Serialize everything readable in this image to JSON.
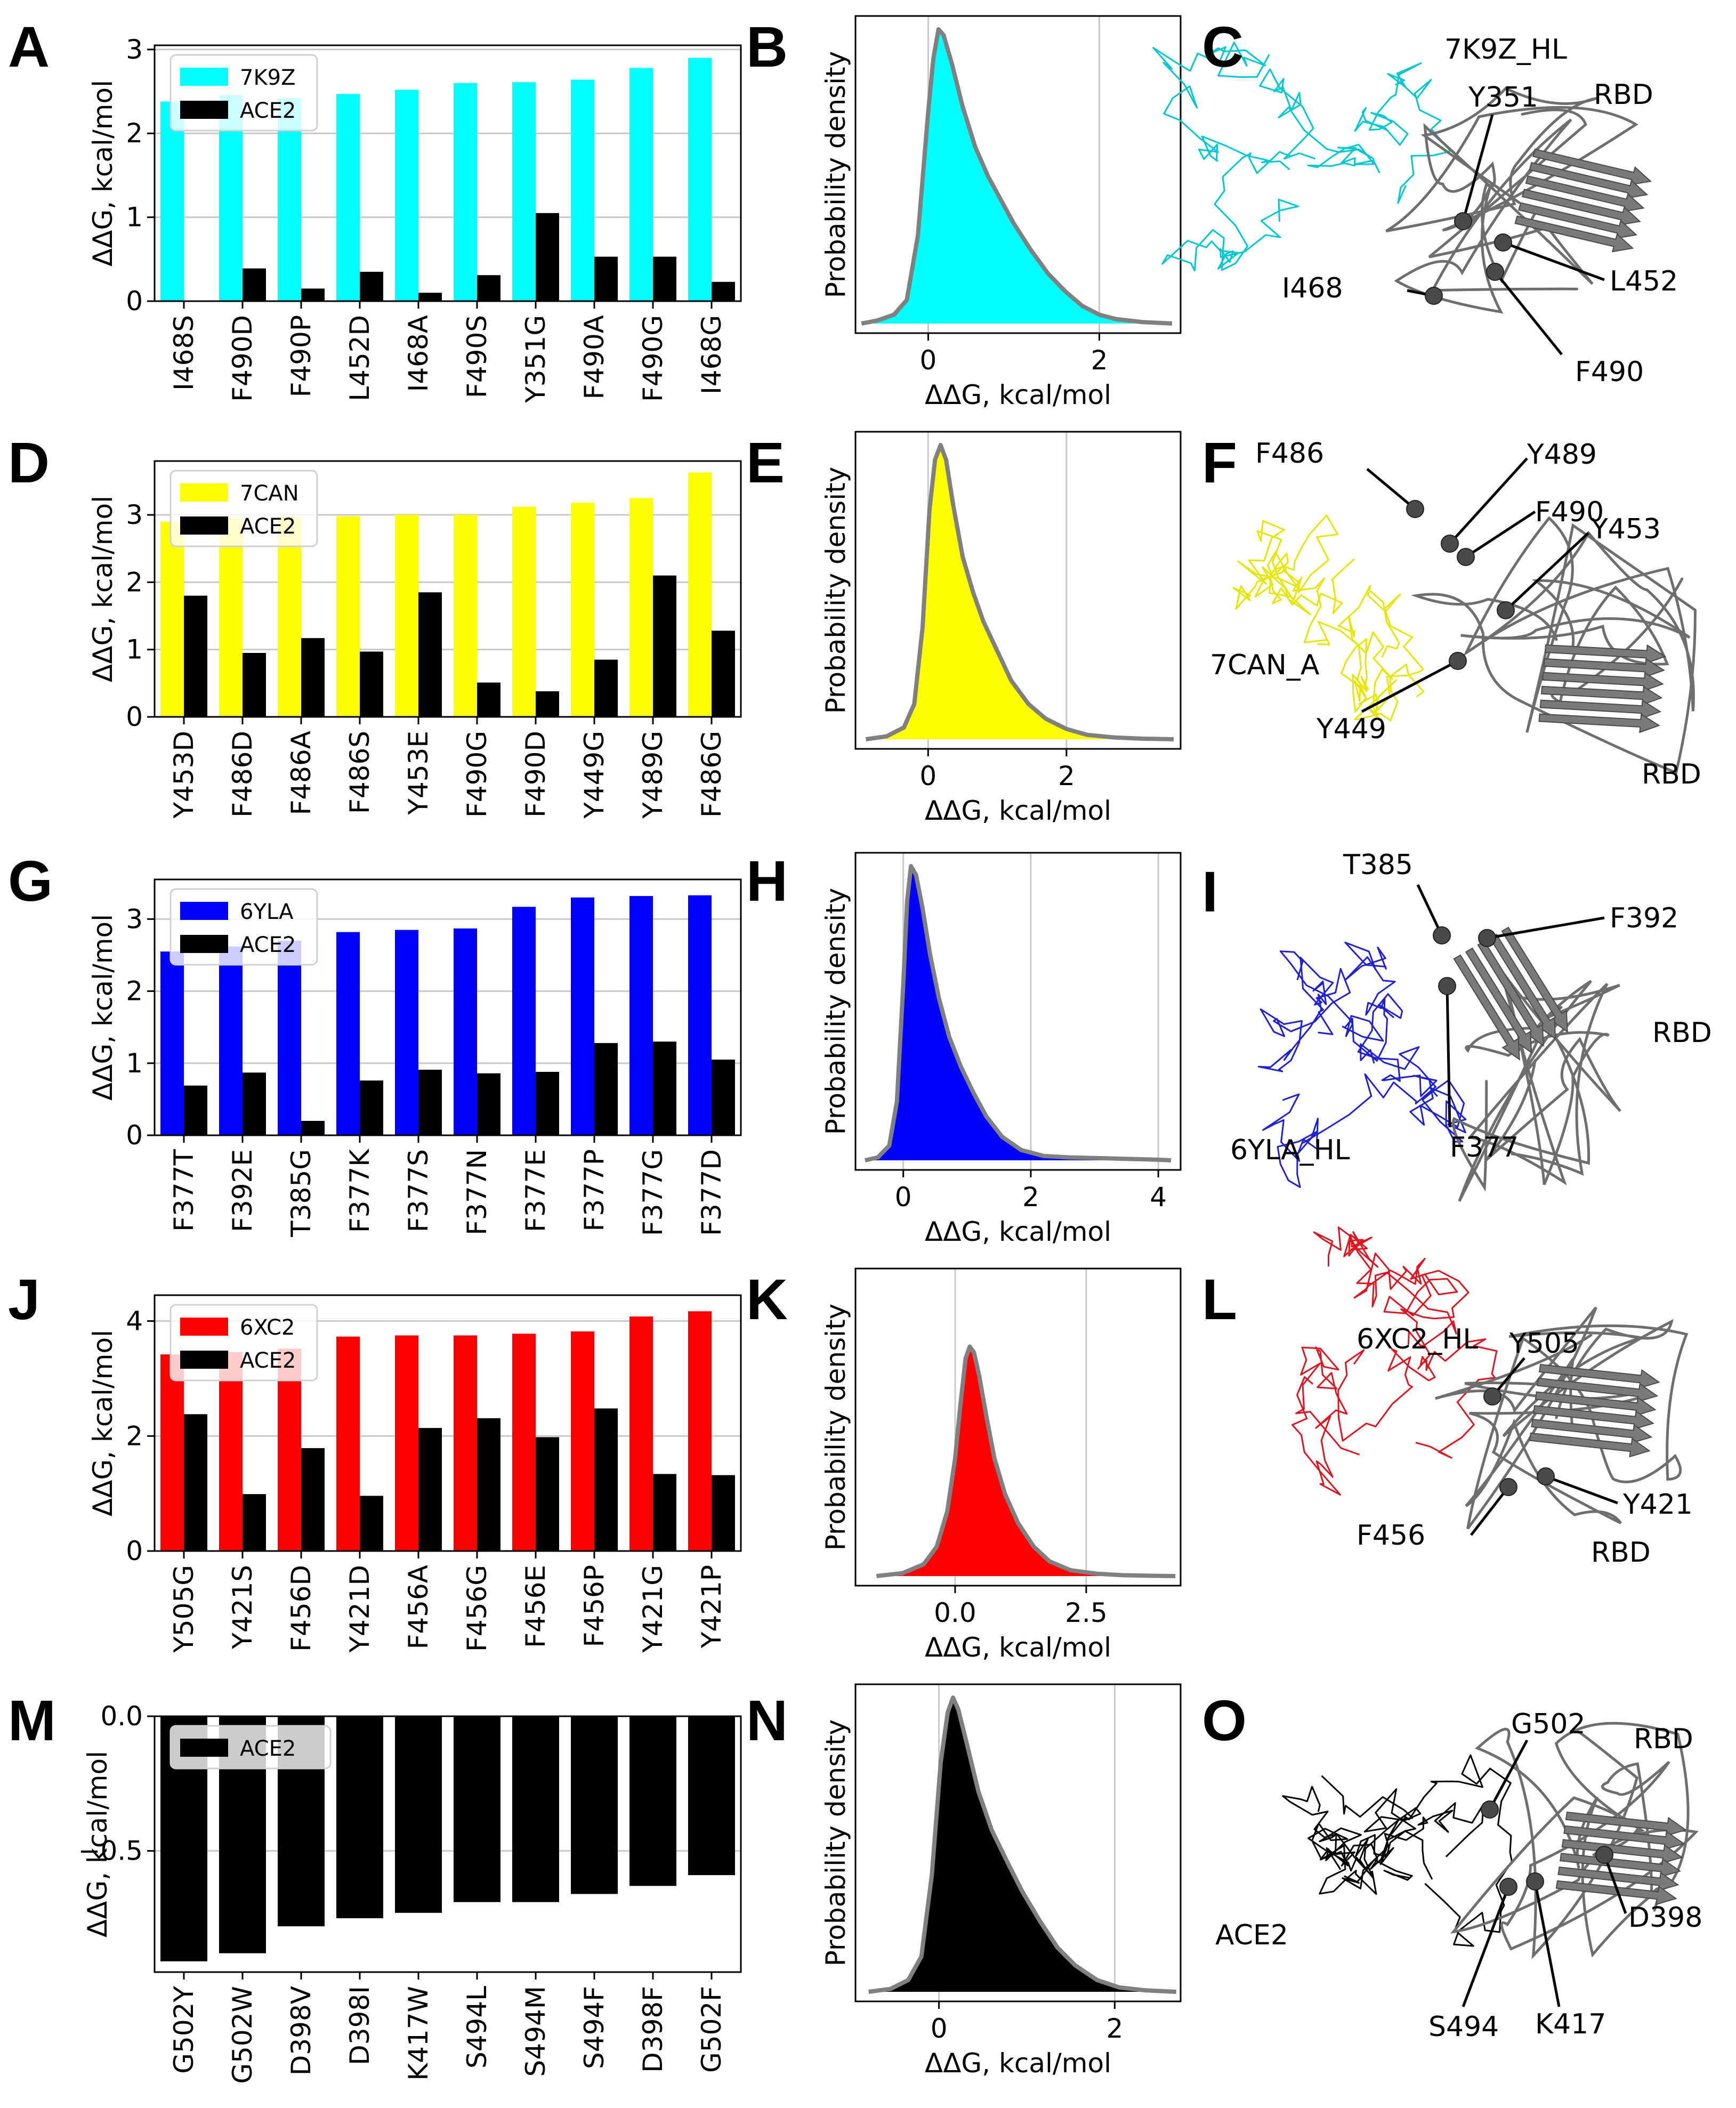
{
  "figure": {
    "kde_ylabel": "Probability density",
    "kde_xlabel": "ΔΔG, kcal/mol"
  },
  "chart_data": [
    {
      "panel": "A",
      "type": "bar",
      "categories": [
        "I468S",
        "F490D",
        "F490P",
        "L452D",
        "I468A",
        "F490S",
        "Y351G",
        "F490A",
        "F490G",
        "I468G"
      ],
      "series": [
        {
          "name": "7K9Z",
          "color": "#00ffff",
          "values": [
            2.38,
            2.46,
            2.42,
            2.47,
            2.52,
            2.6,
            2.61,
            2.64,
            2.78,
            2.9
          ]
        },
        {
          "name": "ACE2",
          "color": "#000000",
          "values": [
            0.0,
            0.39,
            0.15,
            0.35,
            0.1,
            0.31,
            1.05,
            0.53,
            0.53,
            0.23
          ]
        }
      ],
      "ylabel": "ΔΔG, kcal/mol",
      "ylim": [
        0,
        3.05
      ],
      "yticks": [
        0,
        1,
        2,
        3
      ],
      "grid": "y",
      "legend": "top-left"
    },
    {
      "panel": "B",
      "type": "area",
      "title": "",
      "xlabel": "ΔΔG, kcal/mol",
      "ylabel": "Probability density",
      "xlim": [
        -0.85,
        2.95
      ],
      "xticks": [
        0,
        2
      ],
      "fill": "#00ffff",
      "x": [
        -0.78,
        -0.6,
        -0.4,
        -0.25,
        -0.12,
        0.0,
        0.06,
        0.12,
        0.18,
        0.28,
        0.4,
        0.55,
        0.7,
        0.85,
        1.0,
        1.2,
        1.4,
        1.6,
        1.8,
        2.0,
        2.2,
        2.5,
        2.85
      ],
      "y": [
        0.0,
        0.01,
        0.03,
        0.08,
        0.3,
        0.72,
        0.9,
        1.0,
        0.98,
        0.88,
        0.74,
        0.6,
        0.5,
        0.42,
        0.34,
        0.25,
        0.17,
        0.11,
        0.06,
        0.03,
        0.015,
        0.005,
        0.0
      ]
    },
    {
      "panel": "D",
      "type": "bar",
      "categories": [
        "Y453D",
        "F486D",
        "F486A",
        "F486S",
        "Y453E",
        "F490G",
        "F490D",
        "Y449G",
        "Y489G",
        "F486G"
      ],
      "series": [
        {
          "name": "7CAN",
          "color": "#ffff00",
          "values": [
            2.9,
            2.95,
            2.97,
            2.98,
            3.0,
            3.0,
            3.12,
            3.18,
            3.25,
            3.63
          ]
        },
        {
          "name": "ACE2",
          "color": "#000000",
          "values": [
            1.8,
            0.95,
            1.17,
            0.97,
            1.85,
            0.51,
            0.38,
            0.85,
            2.1,
            1.28
          ]
        }
      ],
      "ylabel": "ΔΔG, kcal/mol",
      "ylim": [
        0,
        3.8
      ],
      "yticks": [
        0,
        1,
        2,
        3
      ],
      "grid": "y",
      "legend": "top-left"
    },
    {
      "panel": "E",
      "type": "area",
      "xlabel": "ΔΔG, kcal/mol",
      "ylabel": "Probability density",
      "xlim": [
        -1.05,
        3.65
      ],
      "xticks": [
        0,
        2
      ],
      "fill": "#ffff00",
      "x": [
        -0.9,
        -0.6,
        -0.35,
        -0.2,
        -0.08,
        0.02,
        0.1,
        0.18,
        0.26,
        0.36,
        0.5,
        0.65,
        0.8,
        1.0,
        1.2,
        1.45,
        1.7,
        2.0,
        2.3,
        2.7,
        3.1,
        3.55
      ],
      "y": [
        0.0,
        0.01,
        0.04,
        0.12,
        0.38,
        0.78,
        0.95,
        1.0,
        0.95,
        0.8,
        0.62,
        0.5,
        0.4,
        0.3,
        0.2,
        0.12,
        0.07,
        0.035,
        0.015,
        0.006,
        0.002,
        0.0
      ]
    },
    {
      "panel": "G",
      "type": "bar",
      "categories": [
        "F377T",
        "F392E",
        "T385G",
        "F377K",
        "F377S",
        "F377N",
        "F377E",
        "F377P",
        "F377G",
        "F377D"
      ],
      "series": [
        {
          "name": "6YLA",
          "color": "#0000ff",
          "values": [
            2.55,
            2.62,
            2.7,
            2.82,
            2.85,
            2.87,
            3.17,
            3.3,
            3.32,
            3.33
          ]
        },
        {
          "name": "ACE2",
          "color": "#000000",
          "values": [
            0.69,
            0.87,
            0.2,
            0.76,
            0.91,
            0.86,
            0.88,
            1.28,
            1.3,
            1.05
          ]
        }
      ],
      "ylabel": "ΔΔG, kcal/mol",
      "ylim": [
        0,
        3.55
      ],
      "yticks": [
        0,
        1,
        2,
        3
      ],
      "grid": "y",
      "legend": "top-left"
    },
    {
      "panel": "H",
      "type": "area",
      "xlabel": "ΔΔG, kcal/mol",
      "ylabel": "Probability density",
      "xlim": [
        -0.75,
        4.35
      ],
      "xticks": [
        0,
        2,
        4
      ],
      "fill": "#0000ff",
      "x": [
        -0.6,
        -0.4,
        -0.22,
        -0.1,
        0.0,
        0.06,
        0.12,
        0.2,
        0.3,
        0.42,
        0.56,
        0.72,
        0.9,
        1.1,
        1.3,
        1.55,
        1.85,
        2.2,
        2.6,
        3.0,
        3.5,
        4.0,
        4.2
      ],
      "y": [
        0.0,
        0.01,
        0.05,
        0.2,
        0.6,
        0.88,
        1.0,
        0.97,
        0.86,
        0.7,
        0.55,
        0.42,
        0.32,
        0.23,
        0.15,
        0.08,
        0.035,
        0.015,
        0.01,
        0.008,
        0.005,
        0.002,
        0.0
      ]
    },
    {
      "panel": "J",
      "type": "bar",
      "categories": [
        "Y505G",
        "Y421S",
        "F456D",
        "Y421D",
        "F456A",
        "F456G",
        "F456E",
        "F456P",
        "Y421G",
        "Y421P"
      ],
      "series": [
        {
          "name": "6XC2",
          "color": "#ff0000",
          "values": [
            3.42,
            3.46,
            3.52,
            3.73,
            3.75,
            3.75,
            3.78,
            3.82,
            4.08,
            4.17
          ]
        },
        {
          "name": "ACE2",
          "color": "#000000",
          "values": [
            2.38,
            0.99,
            1.79,
            0.96,
            2.14,
            2.31,
            1.98,
            2.48,
            1.34,
            1.32
          ]
        }
      ],
      "ylabel": "ΔΔG, kcal/mol",
      "ylim": [
        0,
        4.45
      ],
      "yticks": [
        0,
        2,
        4
      ],
      "grid": "y",
      "legend": "top-left"
    },
    {
      "panel": "K",
      "type": "area",
      "xlabel": "ΔΔG, kcal/mol",
      "ylabel": "Probability density",
      "xlim": [
        -1.9,
        4.3
      ],
      "xticks": [
        0.0,
        2.5
      ],
      "fill": "#ff0000",
      "x": [
        -1.5,
        -1.0,
        -0.6,
        -0.35,
        -0.15,
        0.0,
        0.1,
        0.2,
        0.28,
        0.36,
        0.46,
        0.6,
        0.75,
        0.95,
        1.2,
        1.5,
        1.8,
        2.2,
        2.7,
        3.2,
        3.8,
        4.2
      ],
      "y": [
        0.0,
        0.01,
        0.04,
        0.1,
        0.22,
        0.4,
        0.58,
        0.74,
        0.78,
        0.76,
        0.68,
        0.54,
        0.4,
        0.28,
        0.18,
        0.1,
        0.05,
        0.02,
        0.008,
        0.003,
        0.001,
        0.0
      ]
    },
    {
      "panel": "M",
      "type": "bar",
      "categories": [
        "G502Y",
        "G502W",
        "D398V",
        "D398I",
        "K417W",
        "S494L",
        "S494M",
        "S494F",
        "D398F",
        "G502F"
      ],
      "series": [
        {
          "name": "ACE2",
          "color": "#000000",
          "values": [
            -0.91,
            -0.88,
            -0.78,
            -0.75,
            -0.73,
            -0.69,
            -0.69,
            -0.66,
            -0.63,
            -0.59
          ]
        }
      ],
      "ylabel": "ΔΔG, kcal/mol",
      "ylim": [
        -0.95,
        0.0
      ],
      "yticks": [
        -0.5,
        0.0
      ],
      "grid": "y",
      "legend": "top-left"
    },
    {
      "panel": "N",
      "type": "area",
      "xlabel": "ΔΔG, kcal/mol",
      "ylabel": "Probability density",
      "xlim": [
        -0.95,
        2.75
      ],
      "xticks": [
        0,
        2
      ],
      "fill": "#000000",
      "x": [
        -0.8,
        -0.55,
        -0.35,
        -0.2,
        -0.08,
        0.02,
        0.1,
        0.16,
        0.22,
        0.32,
        0.45,
        0.6,
        0.78,
        0.95,
        1.15,
        1.35,
        1.55,
        1.8,
        2.05,
        2.35,
        2.7
      ],
      "y": [
        0.0,
        0.01,
        0.04,
        0.12,
        0.4,
        0.78,
        0.95,
        1.0,
        0.96,
        0.84,
        0.68,
        0.55,
        0.44,
        0.34,
        0.24,
        0.15,
        0.09,
        0.04,
        0.015,
        0.005,
        0.0
      ]
    }
  ],
  "structures": {
    "C": {
      "chain_label": "7K9Z_HL",
      "chain_color": "#00c8d2",
      "rbd_label": "RBD",
      "residues": [
        "Y351",
        "L452",
        "I468",
        "F490"
      ]
    },
    "F": {
      "chain_label": "7CAN_A",
      "chain_color": "#e6e600",
      "rbd_label": "RBD",
      "residues": [
        "F486",
        "Y489",
        "F490",
        "Y453",
        "Y449"
      ]
    },
    "I": {
      "chain_label": "6YLA_HL",
      "chain_color": "#1f1fd6",
      "rbd_label": "RBD",
      "residues": [
        "T385",
        "F392",
        "F377"
      ]
    },
    "L": {
      "chain_label": "6XC2_HL",
      "chain_color": "#e0141e",
      "rbd_label": "RBD",
      "residues": [
        "Y505",
        "Y421",
        "F456"
      ]
    },
    "O": {
      "chain_label": "ACE2",
      "chain_color": "#000000",
      "rbd_label": "RBD",
      "residues": [
        "G502",
        "D398",
        "S494",
        "K417"
      ]
    }
  }
}
